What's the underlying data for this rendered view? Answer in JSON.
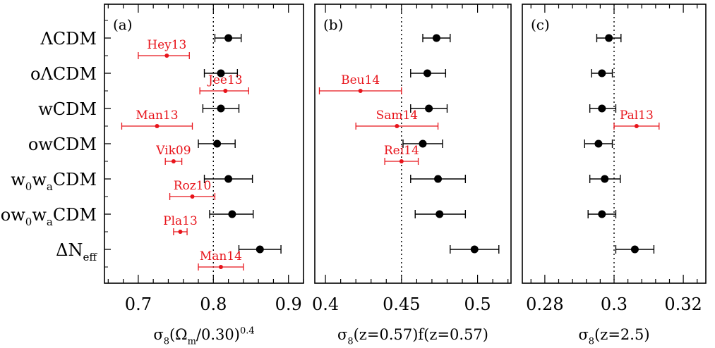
{
  "figure": {
    "models": [
      "ΛCDM",
      "oΛCDM",
      "wCDM",
      "owCDM",
      "w₀wₐCDM",
      "ow₀wₐCDM",
      "ΔN_eff"
    ]
  },
  "colors": {
    "model_points": "#000000",
    "external_points": "#e8141b",
    "reference_line": "#000000"
  },
  "chart_data": [
    {
      "type": "scatter",
      "panel_label": "(a)",
      "xlabel": "σ₈(Ωₘ/0.30)^0.4",
      "xlim": [
        0.655,
        0.92
      ],
      "xticks": [
        0.7,
        0.8,
        0.9
      ],
      "xtick_labels": [
        "0.7",
        "0.8",
        "0.9"
      ],
      "reference_x": 0.8,
      "series": [
        {
          "role": "models",
          "color": "#000000",
          "points": [
            {
              "x": 0.82,
              "xerr": [
                0.018,
                0.017
              ]
            },
            {
              "x": 0.81,
              "xerr": [
                0.022,
                0.022
              ]
            },
            {
              "x": 0.81,
              "xerr": [
                0.024,
                0.024
              ]
            },
            {
              "x": 0.805,
              "xerr": [
                0.025,
                0.024
              ]
            },
            {
              "x": 0.82,
              "xerr": [
                0.032,
                0.032
              ]
            },
            {
              "x": 0.825,
              "xerr": [
                0.03,
                0.028
              ]
            },
            {
              "x": 0.862,
              "xerr": [
                0.028,
                0.028
              ]
            }
          ]
        },
        {
          "role": "external",
          "color": "#e8141b",
          "points": [
            {
              "label": "Hey13",
              "x": 0.738,
              "xerr": [
                0.038,
                0.03
              ],
              "y": 0.5
            },
            {
              "label": "Jee13",
              "x": 0.816,
              "xerr": [
                0.034,
                0.031
              ],
              "y": 1.5
            },
            {
              "label": "Man13",
              "x": 0.725,
              "xerr": [
                0.047,
                0.047
              ],
              "y": 2.5
            },
            {
              "label": "Vik09",
              "x": 0.747,
              "xerr": [
                0.011,
                0.011
              ],
              "y": 3.5
            },
            {
              "label": "Roz10",
              "x": 0.772,
              "xerr": [
                0.03,
                0.03
              ],
              "y": 4.5
            },
            {
              "label": "Pla13",
              "x": 0.756,
              "xerr": [
                0.009,
                0.009
              ],
              "y": 5.5
            },
            {
              "label": "Man14",
              "x": 0.81,
              "xerr": [
                0.03,
                0.03
              ],
              "y": 6.5
            }
          ]
        }
      ]
    },
    {
      "type": "scatter",
      "panel_label": "(b)",
      "xlabel": "σ₈(z=0.57)f(z=0.57)",
      "xlim": [
        0.393,
        0.522
      ],
      "xticks": [
        0.4,
        0.45,
        0.5
      ],
      "xtick_labels": [
        "0.4",
        "0.45",
        "0.5"
      ],
      "reference_x": 0.45,
      "series": [
        {
          "role": "models",
          "color": "#000000",
          "points": [
            {
              "x": 0.473,
              "xerr": [
                0.009,
                0.009
              ]
            },
            {
              "x": 0.467,
              "xerr": [
                0.011,
                0.012
              ]
            },
            {
              "x": 0.468,
              "xerr": [
                0.012,
                0.012
              ]
            },
            {
              "x": 0.464,
              "xerr": [
                0.013,
                0.013
              ]
            },
            {
              "x": 0.474,
              "xerr": [
                0.018,
                0.018
              ]
            },
            {
              "x": 0.475,
              "xerr": [
                0.016,
                0.017
              ]
            },
            {
              "x": 0.498,
              "xerr": [
                0.016,
                0.016
              ]
            }
          ]
        },
        {
          "role": "external",
          "color": "#e8141b",
          "points": [
            {
              "label": "Beu14",
              "x": 0.423,
              "xerr": [
                0.027,
                0.027
              ],
              "y": 1.5
            },
            {
              "label": "Sam14",
              "x": 0.447,
              "xerr": [
                0.027,
                0.027
              ],
              "y": 2.5
            },
            {
              "label": "Rei14",
              "x": 0.45,
              "xerr": [
                0.011,
                0.011
              ],
              "y": 3.5
            }
          ]
        }
      ]
    },
    {
      "type": "scatter",
      "panel_label": "(c)",
      "xlabel": "σ₈(z=2.5)",
      "xlim": [
        0.2735,
        0.3265
      ],
      "xticks": [
        0.28,
        0.3,
        0.32
      ],
      "xtick_labels": [
        "0.28",
        "0.3",
        "0.32"
      ],
      "reference_x": 0.3,
      "series": [
        {
          "role": "models",
          "color": "#000000",
          "points": [
            {
              "x": 0.2985,
              "xerr": [
                0.0035,
                0.0035
              ]
            },
            {
              "x": 0.2965,
              "xerr": [
                0.003,
                0.003
              ]
            },
            {
              "x": 0.2965,
              "xerr": [
                0.0035,
                0.004
              ]
            },
            {
              "x": 0.2955,
              "xerr": [
                0.004,
                0.004
              ]
            },
            {
              "x": 0.2973,
              "xerr": [
                0.0043,
                0.0045
              ]
            },
            {
              "x": 0.2965,
              "xerr": [
                0.004,
                0.004
              ]
            },
            {
              "x": 0.306,
              "xerr": [
                0.0055,
                0.0055
              ]
            }
          ]
        },
        {
          "role": "external",
          "color": "#e8141b",
          "points": [
            {
              "label": "Pal13",
              "x": 0.3065,
              "xerr": [
                0.0065,
                0.0065
              ],
              "y": 2.5
            }
          ]
        }
      ]
    }
  ]
}
